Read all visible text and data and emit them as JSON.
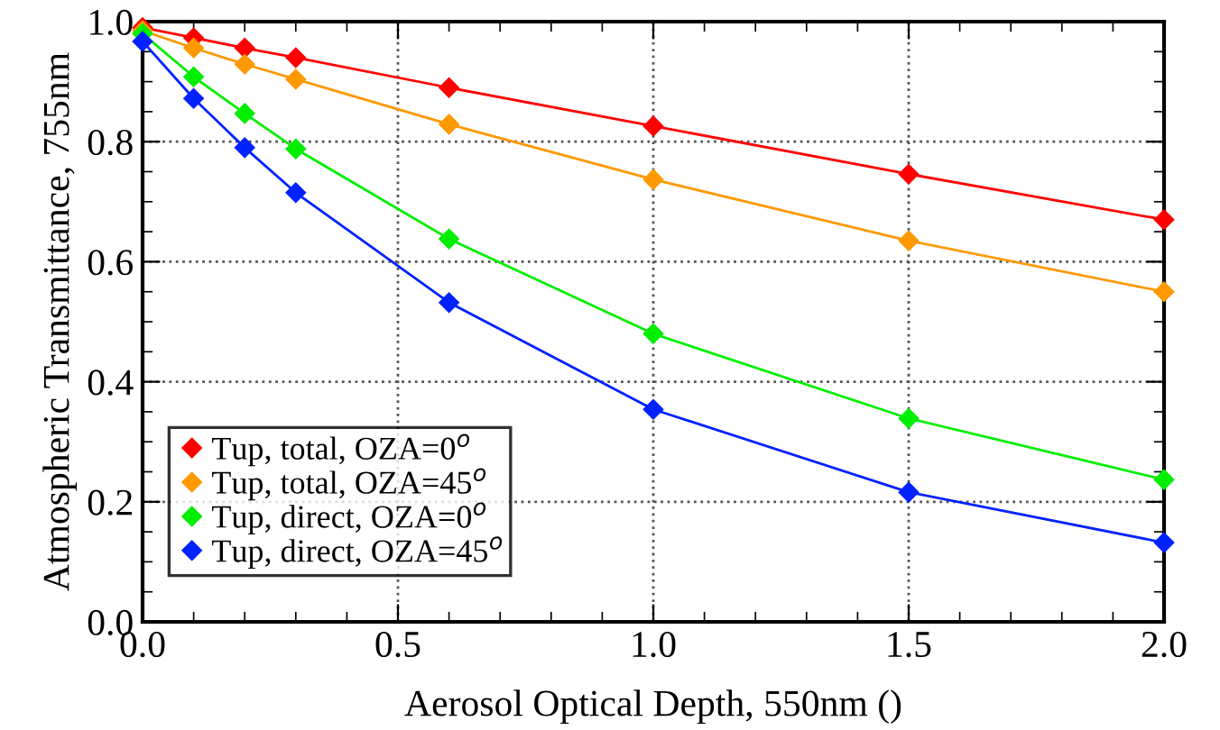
{
  "chart_data": {
    "type": "line",
    "xlabel": "Aerosol Optical Depth, 550nm ()",
    "ylabel": "Atmospheric Transmittance, 755nm",
    "x": [
      0,
      0.1,
      0.2,
      0.3,
      0.6,
      1.0,
      1.5,
      2.0
    ],
    "series": [
      {
        "name": "Tup, total, OZA=0$^{o}$",
        "color": "#ff0000",
        "values": [
          0.99,
          0.973,
          0.956,
          0.94,
          0.89,
          0.826,
          0.746,
          0.67
        ]
      },
      {
        "name": "Tup, total, OZA=45$^{o}$",
        "color": "#ff9900",
        "values": [
          0.985,
          0.956,
          0.929,
          0.904,
          0.829,
          0.737,
          0.635,
          0.55
        ]
      },
      {
        "name": "Tup, direct, OZA=0$^{o}$",
        "color": "#00ee00",
        "values": [
          0.98,
          0.908,
          0.847,
          0.788,
          0.638,
          0.48,
          0.339,
          0.237
        ]
      },
      {
        "name": "Tup, direct, OZA=45$^{o}$",
        "color": "#0022ff",
        "values": [
          0.967,
          0.872,
          0.79,
          0.715,
          0.532,
          0.354,
          0.216,
          0.132
        ]
      }
    ],
    "xlim": [
      0,
      2.0
    ],
    "xticks": [
      {
        "value": 0,
        "label": "0.0"
      },
      {
        "value": 0.5,
        "label": "0.5"
      },
      {
        "value": 1.0,
        "label": "1.0"
      },
      {
        "value": 1.5,
        "label": "1.5"
      },
      {
        "value": 2.0,
        "label": "2.0"
      }
    ],
    "ylim": [
      0,
      1.0
    ],
    "yticks": [
      {
        "value": 0,
        "label": "0.0"
      },
      {
        "value": 0.2,
        "label": "0.2"
      },
      {
        "value": 0.4,
        "label": "0.4"
      },
      {
        "value": 0.6,
        "label": "0.6"
      },
      {
        "value": 0.8,
        "label": "0.8"
      },
      {
        "value": 1.0,
        "label": "1.0"
      }
    ],
    "grid": true,
    "legend": "bottom left",
    "marker": "diamond",
    "line_style": "solid"
  }
}
